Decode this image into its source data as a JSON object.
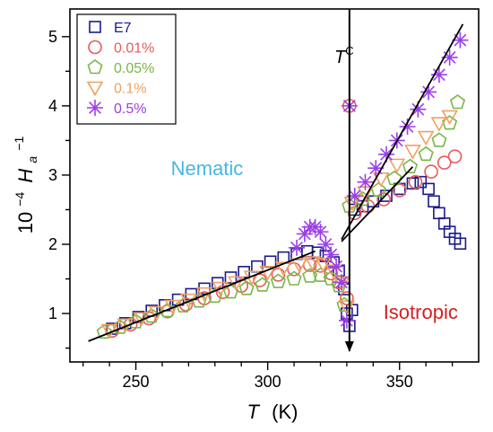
{
  "chart_data": {
    "type": "scatter",
    "xlabel": "T",
    "xlabel_unit": "(K)",
    "ylabel_prefix": "10",
    "ylabel_exp": "−4",
    "ylabel_main": "H",
    "ylabel_sub": "a",
    "ylabel_sup": "−1",
    "xlim": [
      225,
      380
    ],
    "ylim": [
      0.3,
      5.4
    ],
    "xticks": [
      250,
      300,
      350
    ],
    "xtick_labels": [
      "250",
      "300",
      "350"
    ],
    "yticks": [
      1,
      2,
      3,
      4,
      5
    ],
    "ytick_labels": [
      "1",
      "2",
      "3",
      "4",
      "5"
    ],
    "grid": false,
    "legend_position": "top-left",
    "series": [
      {
        "name": "E7",
        "marker": "square",
        "color": "#1a1a8c",
        "points": [
          [
            241,
            0.78
          ],
          [
            246,
            0.86
          ],
          [
            251,
            0.95
          ],
          [
            256,
            1.04
          ],
          [
            261,
            1.12
          ],
          [
            266,
            1.2
          ],
          [
            271,
            1.28
          ],
          [
            276,
            1.36
          ],
          [
            281,
            1.44
          ],
          [
            286,
            1.52
          ],
          [
            291,
            1.6
          ],
          [
            296,
            1.68
          ],
          [
            301,
            1.75
          ],
          [
            306,
            1.81
          ],
          [
            311,
            1.86
          ],
          [
            315,
            1.9
          ],
          [
            319,
            1.88
          ],
          [
            322,
            1.83
          ],
          [
            325,
            1.74
          ],
          [
            327,
            1.62
          ],
          [
            329,
            1.35
          ],
          [
            330,
            1.0
          ],
          [
            331,
            0.82
          ],
          [
            332,
            1.05
          ],
          [
            333,
            2.5
          ],
          [
            336,
            2.55
          ],
          [
            340,
            2.62
          ],
          [
            345,
            2.7
          ],
          [
            350,
            2.8
          ],
          [
            355,
            2.88
          ],
          [
            358,
            2.9
          ],
          [
            361,
            2.8
          ],
          [
            363,
            2.62
          ],
          [
            365,
            2.45
          ],
          [
            367,
            2.3
          ],
          [
            369,
            2.18
          ],
          [
            371,
            2.08
          ],
          [
            373,
            2.01
          ]
        ]
      },
      {
        "name": "0.01%",
        "marker": "circle",
        "color": "#e85a5a",
        "points": [
          [
            241,
            0.75
          ],
          [
            248,
            0.84
          ],
          [
            255,
            0.93
          ],
          [
            262,
            1.03
          ],
          [
            269,
            1.13
          ],
          [
            276,
            1.22
          ],
          [
            283,
            1.31
          ],
          [
            290,
            1.4
          ],
          [
            297,
            1.48
          ],
          [
            304,
            1.56
          ],
          [
            310,
            1.64
          ],
          [
            316,
            1.7
          ],
          [
            320,
            1.69
          ],
          [
            324,
            1.58
          ],
          [
            327,
            1.45
          ],
          [
            330,
            1.22
          ],
          [
            331,
            4.0
          ],
          [
            333,
            2.45
          ],
          [
            338,
            2.55
          ],
          [
            344,
            2.65
          ],
          [
            350,
            2.78
          ],
          [
            356,
            2.9
          ],
          [
            362,
            3.05
          ],
          [
            367,
            3.18
          ],
          [
            371,
            3.27
          ]
        ]
      },
      {
        "name": "0.05%",
        "marker": "pentagon",
        "color": "#7ab648",
        "points": [
          [
            238,
            0.73
          ],
          [
            244,
            0.8
          ],
          [
            250,
            0.88
          ],
          [
            256,
            0.96
          ],
          [
            262,
            1.04
          ],
          [
            268,
            1.11
          ],
          [
            274,
            1.18
          ],
          [
            280,
            1.25
          ],
          [
            286,
            1.31
          ],
          [
            292,
            1.36
          ],
          [
            298,
            1.41
          ],
          [
            304,
            1.46
          ],
          [
            310,
            1.5
          ],
          [
            316,
            1.54
          ],
          [
            320,
            1.55
          ],
          [
            324,
            1.5
          ],
          [
            327,
            1.4
          ],
          [
            329,
            1.12
          ],
          [
            331,
            2.55
          ],
          [
            336,
            2.65
          ],
          [
            342,
            2.78
          ],
          [
            348,
            2.95
          ],
          [
            354,
            3.12
          ],
          [
            360,
            3.3
          ],
          [
            365,
            3.5
          ],
          [
            369,
            3.75
          ],
          [
            372,
            4.05
          ]
        ]
      },
      {
        "name": "0.1%",
        "marker": "triangle-down",
        "color": "#f0a060",
        "points": [
          [
            240,
            0.76
          ],
          [
            246,
            0.84
          ],
          [
            252,
            0.93
          ],
          [
            258,
            1.02
          ],
          [
            264,
            1.11
          ],
          [
            270,
            1.2
          ],
          [
            276,
            1.29
          ],
          [
            282,
            1.37
          ],
          [
            288,
            1.45
          ],
          [
            294,
            1.53
          ],
          [
            300,
            1.6
          ],
          [
            306,
            1.66
          ],
          [
            312,
            1.71
          ],
          [
            317,
            1.74
          ],
          [
            321,
            1.72
          ],
          [
            325,
            1.62
          ],
          [
            328,
            1.45
          ],
          [
            330,
            1.1
          ],
          [
            332,
            2.6
          ],
          [
            337,
            2.75
          ],
          [
            343,
            2.95
          ],
          [
            349,
            3.15
          ],
          [
            355,
            3.35
          ],
          [
            360,
            3.55
          ],
          [
            365,
            3.75
          ],
          [
            369,
            3.85
          ]
        ]
      },
      {
        "name": "0.5%",
        "marker": "asterisk",
        "color": "#9b3fe8",
        "points": [
          [
            311,
            1.95
          ],
          [
            314,
            2.15
          ],
          [
            316,
            2.25
          ],
          [
            318,
            2.25
          ],
          [
            320,
            2.18
          ],
          [
            322,
            2.0
          ],
          [
            324,
            1.85
          ],
          [
            326,
            1.68
          ],
          [
            328,
            1.45
          ],
          [
            330,
            0.9
          ],
          [
            331,
            4.0
          ],
          [
            333,
            2.7
          ],
          [
            337,
            2.9
          ],
          [
            341,
            3.1
          ],
          [
            345,
            3.3
          ],
          [
            349,
            3.5
          ],
          [
            353,
            3.7
          ],
          [
            357,
            3.95
          ],
          [
            361,
            4.2
          ],
          [
            365,
            4.45
          ],
          [
            369,
            4.7
          ],
          [
            373,
            4.95
          ]
        ]
      }
    ],
    "fit_lines": [
      {
        "x": [
          232,
          318
        ],
        "y": [
          0.6,
          1.9
        ]
      },
      {
        "x": [
          328,
          374
        ],
        "y": [
          2.07,
          5.18
        ]
      },
      {
        "x": [
          328,
          355
        ],
        "y": [
          2.04,
          3.12
        ]
      }
    ],
    "transition": {
      "x": 331,
      "label": "T",
      "label_sup": "C"
    },
    "annotations": [
      {
        "text": "Nematic",
        "x": 277,
        "y": 3.0,
        "color": "#45b6e8"
      },
      {
        "text": "Isotropic",
        "x": 358,
        "y": 0.92,
        "color": "#d42020"
      }
    ]
  }
}
